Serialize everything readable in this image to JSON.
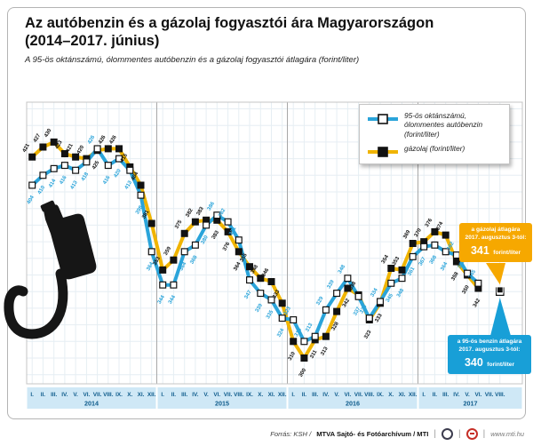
{
  "page": {
    "title_line1": "Az autóbenzin és a gázolaj fogyasztói ára Magyarországon",
    "title_line2": "(2014–2017. június)",
    "subtitle": "A 95-ös oktánszámú, ólommentes autóbenzin és a gázolaj fogyasztói átlagára (forint/liter)"
  },
  "legend": {
    "benzin": [
      "95-ös oktánszámú,",
      "ólommentes autóbenzin",
      "(forint/liter)"
    ],
    "gazolaj": "gázolaj (forint/liter)"
  },
  "callout_gazolaj": {
    "line1": "a gázolaj átlagára",
    "line2": "2017. augusztus 3-tól:",
    "value": "341",
    "unit": "forint/liter"
  },
  "callout_benzin": {
    "line1": "a 95-ös benzin átlagára",
    "line2": "2017. augusztus 3-tól:",
    "value": "340",
    "unit": "forint/liter"
  },
  "source": {
    "label_italic": "Forrás: KSH /",
    "label_bold": "MTVA Sajtó- és Fotóarchívum / MTI",
    "website": "www.mti.hu"
  },
  "colors": {
    "benzin_line": "#2aa4da",
    "benzin_marker_fill": "#ffffff",
    "gazolaj_line": "#f0b400",
    "gazolaj_marker_fill": "#121212",
    "marker_stroke": "#121212",
    "benzin_value_label": "#2aa4da",
    "gazolaj_value_label": "#111111",
    "axis_band": "#cfe8f6",
    "axis_text": "#0f5c8c",
    "grid": "#e6eef3",
    "year_separator": "#a8a8a8",
    "plot_border": "#c4c4c4",
    "callout_gazolaj_bg": "#f6a800",
    "callout_benzin_bg": "#189fd7",
    "nozzle": "#161616"
  },
  "chart_data": {
    "type": "line",
    "unit": "forint/liter",
    "title": "Az autóbenzin és a gázolaj fogyasztói ára Magyarországon (2014–2017. június)",
    "ylim": [
      285,
      455
    ],
    "grid": true,
    "legend_position": "top-right",
    "month_labels": [
      "I.",
      "II.",
      "III.",
      "IV.",
      "V.",
      "VI.",
      "VII.",
      "VIII.",
      "IX.",
      "X.",
      "XI.",
      "XII."
    ],
    "years": [
      {
        "label": "2014",
        "month_count": 12
      },
      {
        "label": "2015",
        "month_count": 12
      },
      {
        "label": "2016",
        "month_count": 12
      },
      {
        "label": "2017",
        "month_count": 8
      }
    ],
    "series": [
      {
        "name": "95-ös oktánszámú, ólommentes autóbenzin (forint/liter)",
        "values": [
          404,
          410,
          414,
          416,
          413,
          418,
          426,
          416,
          420,
          413,
          398,
          364,
          344,
          344,
          364,
          368,
          380,
          386,
          382,
          371,
          347,
          339,
          335,
          324,
          323,
          310,
          313,
          329,
          339,
          348,
          337,
          324,
          334,
          345,
          348,
          361,
          367,
          368,
          364,
          362,
          351,
          345
        ]
      },
      {
        "name": "gázolaj (forint/liter)",
        "values": [
          421,
          427,
          430,
          423,
          421,
          420,
          425,
          426,
          426,
          415,
          404,
          381,
          353,
          359,
          375,
          382,
          383,
          383,
          376,
          364,
          355,
          348,
          346,
          333,
          310,
          300,
          311,
          313,
          328,
          342,
          338,
          323,
          333,
          354,
          353,
          369,
          370,
          376,
          374,
          358,
          350,
          342
        ]
      }
    ],
    "extra_point": {
      "label": "2017. augusztus 3.",
      "timeline_index": 43,
      "benzin": 340,
      "gazolaj": 341
    }
  }
}
